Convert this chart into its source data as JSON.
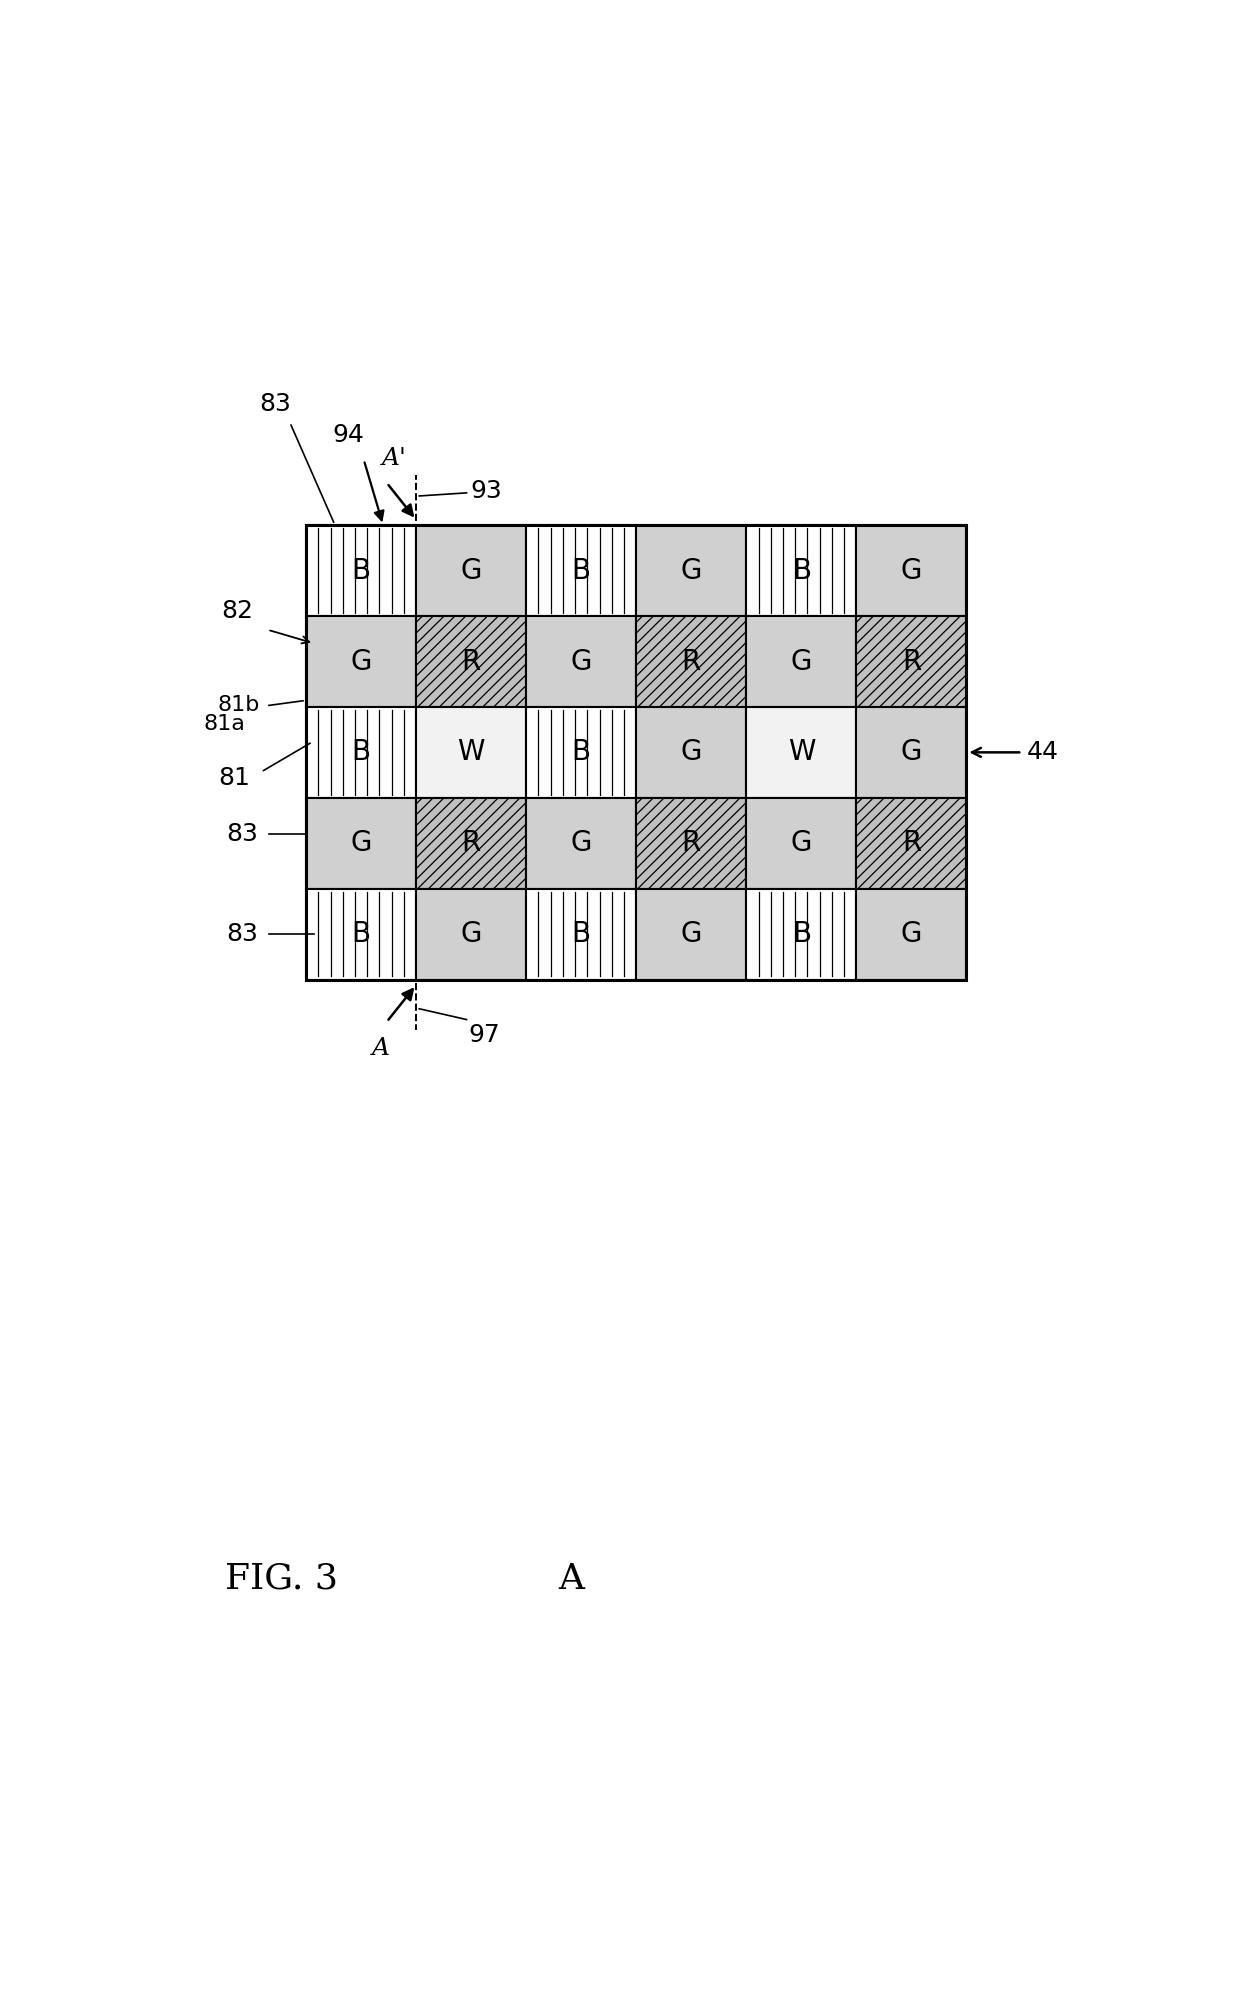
{
  "fig_width": 12.4,
  "fig_height": 20.09,
  "background": "#ffffff",
  "ox": 1.95,
  "oy": 10.5,
  "cw": 1.42,
  "ch": 1.18,
  "ncols": 6,
  "nrows": 5,
  "cells": [
    [
      "B",
      "G",
      "B",
      "G",
      "B",
      "G"
    ],
    [
      "G",
      "R",
      "G",
      "R",
      "G",
      "R"
    ],
    [
      "B",
      "W",
      "B",
      "G",
      "W",
      "G"
    ],
    [
      "G",
      "R",
      "G",
      "R",
      "G",
      "R"
    ],
    [
      "B",
      "G",
      "B",
      "G",
      "B",
      "G"
    ]
  ],
  "lfs": 20,
  "afs": 18,
  "fig_label": "FIG. 3",
  "section_label": "A",
  "color_B": "#ffffff",
  "color_G": "#d0d0d0",
  "color_R": "#b8b8b8",
  "color_W": "#f2f2f2",
  "color_border": "#000000"
}
